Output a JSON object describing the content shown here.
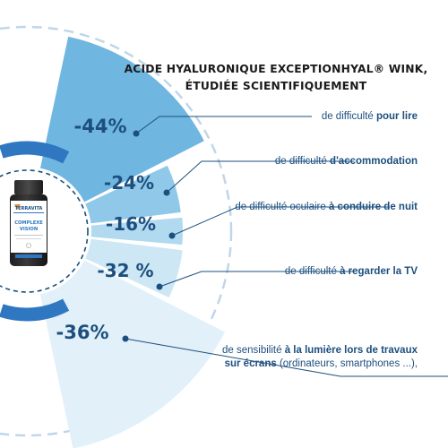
{
  "title_lines": [
    "ACIDE HYALURONIQUE EXCEPTIONHYAL® WINK,",
    "ÉTUDIÉE SCIENTIFIQUEMENT"
  ],
  "product": {
    "brand": "TERRAVITA",
    "name_line1": "COMPLEXE",
    "name_line2": "VISION"
  },
  "colors": {
    "ring": [
      "#6fb6e1",
      "#8fc8e8",
      "#b1d9ef",
      "#cde7f5",
      "#e1f0f9"
    ],
    "dark_arc": "#2f78c1",
    "text": "#1c4f7e",
    "leader": "#1c4f7e",
    "dashes": "#bfd6ea"
  },
  "chart_data": {
    "type": "pie",
    "values": [
      -44,
      -24,
      -16,
      -32,
      -36
    ],
    "labels": [
      "-44%",
      "-24%",
      "-16%",
      "-32 %",
      "-36%"
    ],
    "descriptions": [
      {
        "pre": "de difficulté ",
        "bold": "pour lire",
        "post": ""
      },
      {
        "pre": "de difficulté ",
        "bold": "d'accommodation",
        "post": ""
      },
      {
        "pre": "de difficulté oculaire ",
        "bold": "à conduire de nuit",
        "post": ""
      },
      {
        "pre": "de difficulté ",
        "bold": "à regarder la TV",
        "post": ""
      },
      {
        "pre": "de sensibilité ",
        "bold": "à la lumière lors de travaux",
        "post": "",
        "line2_bold": "sur écrans",
        "line2_post": " (ordinateurs, smartphones ...),"
      }
    ]
  }
}
